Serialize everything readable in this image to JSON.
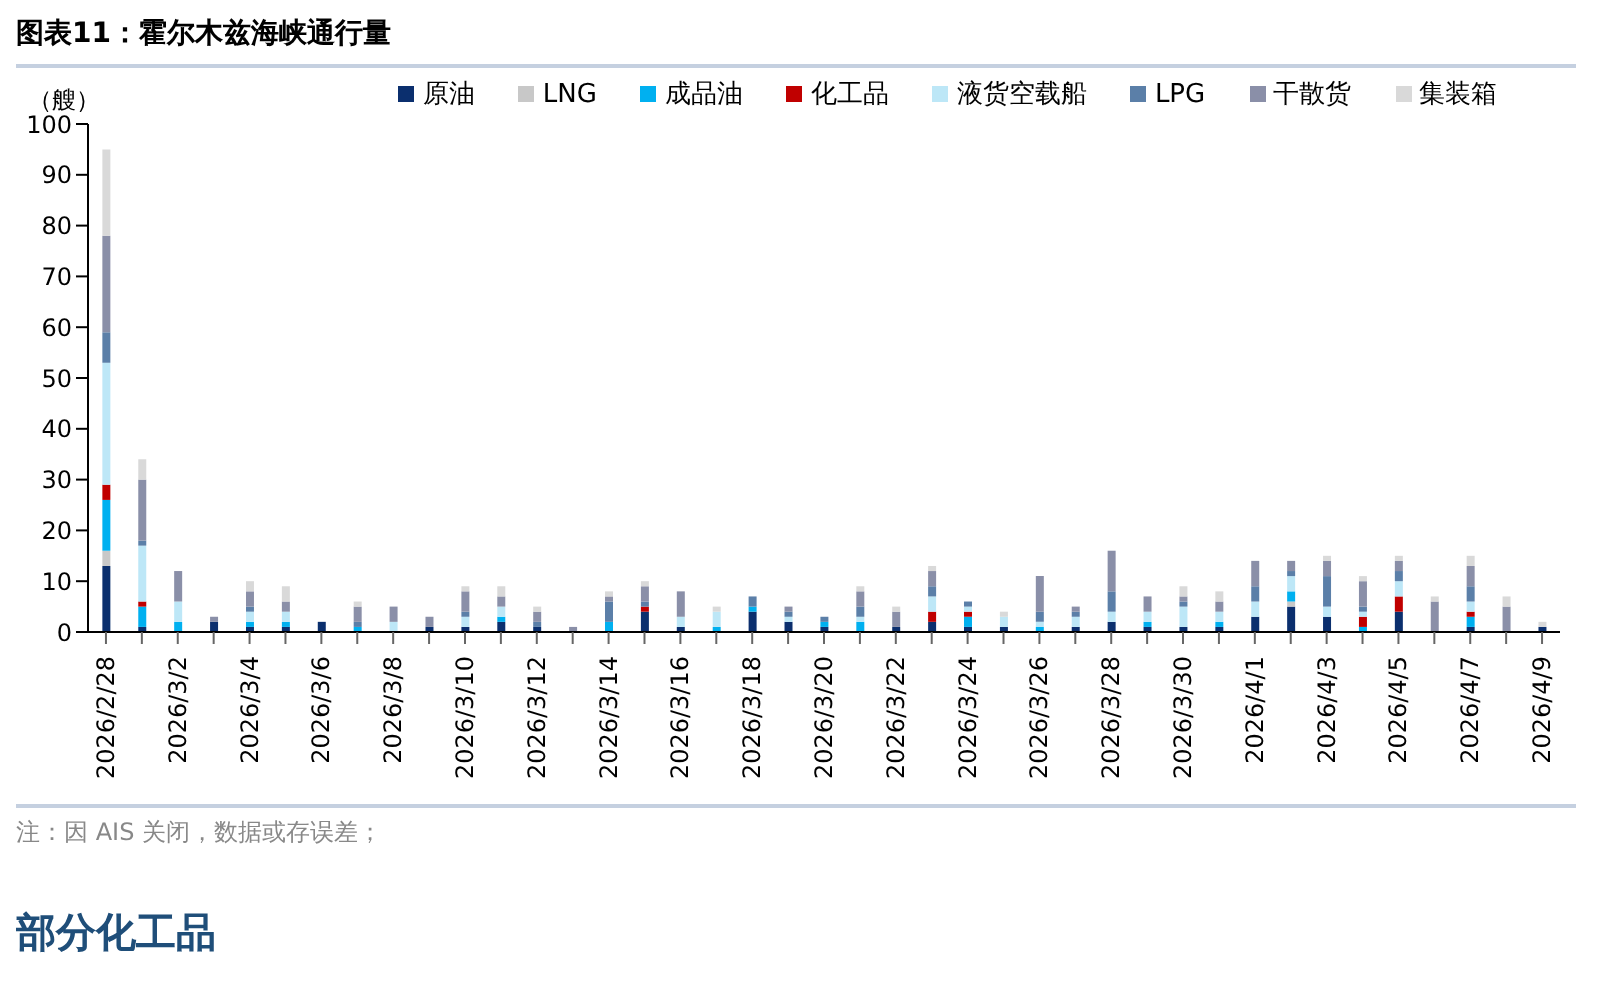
{
  "chart_data": {
    "type": "bar",
    "stacked": true,
    "title": "图表11：霍尔木兹海峡通行量",
    "ylabel": "（艘）",
    "categories": [
      "2026/2/28",
      null,
      "2026/3/2",
      null,
      "2026/3/4",
      null,
      "2026/3/6",
      null,
      "2026/3/8",
      null,
      "2026/3/10",
      null,
      "2026/3/12",
      null,
      "2026/3/14",
      null,
      "2026/3/16",
      null,
      "2026/3/18",
      null,
      "2026/3/20",
      null,
      "2026/3/22",
      null,
      "2026/3/24",
      null,
      "2026/3/26",
      null,
      "2026/3/28",
      null,
      "2026/3/30",
      null,
      "2026/4/1",
      null,
      "2026/4/3",
      null,
      "2026/4/5",
      null,
      "2026/4/7",
      null,
      "2026/4/9"
    ],
    "series": [
      {
        "name": "原油",
        "color": "#0b2f6e",
        "values": [
          13,
          1,
          0,
          2,
          1,
          1,
          2,
          0,
          0,
          1,
          1,
          2,
          1,
          0,
          0,
          4,
          1,
          0,
          4,
          2,
          1,
          0,
          1,
          2,
          1,
          1,
          0,
          1,
          2,
          1,
          1,
          1,
          3,
          5,
          3,
          0,
          4,
          0,
          1,
          0,
          1
        ]
      },
      {
        "name": "LNG",
        "color": "#c8c8c8",
        "values": [
          3,
          0,
          0,
          0,
          0,
          0,
          0,
          0,
          0,
          0,
          0,
          0,
          0,
          0,
          0,
          0,
          0,
          0,
          0,
          0,
          0,
          0,
          0,
          0,
          0,
          0,
          0,
          0,
          0,
          0,
          0,
          0,
          0,
          1,
          0,
          0,
          0,
          0,
          0,
          0,
          0
        ]
      },
      {
        "name": "成品油",
        "color": "#00b0f0",
        "values": [
          10,
          4,
          2,
          0,
          1,
          1,
          0,
          1,
          0,
          0,
          0,
          1,
          0,
          0,
          2,
          0,
          0,
          1,
          1,
          0,
          1,
          2,
          0,
          0,
          2,
          0,
          1,
          0,
          0,
          1,
          0,
          1,
          0,
          2,
          0,
          1,
          0,
          0,
          2,
          0,
          0
        ]
      },
      {
        "name": "化工品",
        "color": "#c00000",
        "values": [
          3,
          1,
          0,
          0,
          0,
          0,
          0,
          0,
          0,
          0,
          0,
          0,
          0,
          0,
          0,
          1,
          0,
          0,
          0,
          0,
          0,
          0,
          0,
          2,
          1,
          0,
          0,
          0,
          0,
          0,
          0,
          0,
          0,
          0,
          0,
          2,
          3,
          0,
          1,
          0,
          0
        ]
      },
      {
        "name": "液货空载船",
        "color": "#bde7f7",
        "values": [
          24,
          11,
          4,
          0,
          2,
          2,
          0,
          0,
          2,
          0,
          2,
          2,
          0,
          0,
          0,
          0,
          2,
          3,
          0,
          1,
          0,
          1,
          0,
          3,
          1,
          2,
          1,
          2,
          2,
          2,
          4,
          2,
          3,
          3,
          2,
          1,
          3,
          0,
          2,
          0,
          0
        ]
      },
      {
        "name": "LPG",
        "color": "#5b7fa8",
        "values": [
          6,
          1,
          0,
          0,
          1,
          0,
          0,
          1,
          0,
          0,
          1,
          0,
          1,
          0,
          4,
          1,
          0,
          0,
          2,
          1,
          1,
          2,
          0,
          2,
          1,
          0,
          2,
          1,
          4,
          0,
          1,
          0,
          3,
          1,
          6,
          1,
          2,
          0,
          3,
          0,
          0
        ]
      },
      {
        "name": "干散货",
        "color": "#8a8fa8",
        "values": [
          19,
          12,
          6,
          1,
          3,
          2,
          0,
          3,
          3,
          2,
          4,
          2,
          2,
          1,
          1,
          3,
          5,
          0,
          0,
          1,
          0,
          3,
          3,
          3,
          0,
          0,
          7,
          1,
          8,
          3,
          1,
          2,
          5,
          2,
          3,
          5,
          2,
          6,
          4,
          5,
          0
        ]
      },
      {
        "name": "集装箱",
        "color": "#d9d9d9",
        "values": [
          17,
          4,
          0,
          0,
          2,
          3,
          0,
          1,
          0,
          0,
          1,
          2,
          1,
          0,
          1,
          1,
          0,
          1,
          0,
          0,
          0,
          1,
          1,
          1,
          0,
          1,
          0,
          0,
          0,
          0,
          2,
          2,
          0,
          0,
          1,
          1,
          1,
          1,
          2,
          2,
          1
        ]
      }
    ],
    "ylim": [
      0,
      100
    ],
    "yticks": [
      0,
      10,
      20,
      30,
      40,
      50,
      60,
      70,
      80,
      90,
      100
    ],
    "legend": "top",
    "annotations": [
      "注：因 AIS 关闭，数据或存误差；",
      "部分化工品"
    ]
  }
}
